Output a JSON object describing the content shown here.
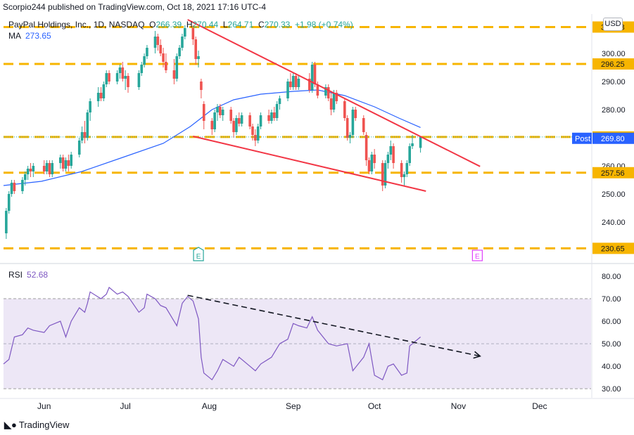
{
  "header": {
    "publisher": "Scorpio244 published on TradingView.com, Oct 18, 2021 17:16 UTC-4",
    "symbol": "PayPal Holdings, Inc., 1D, NASDAQ",
    "ohlc": {
      "open_label": "O",
      "open": "266.39",
      "high_label": "H",
      "high": "270.44",
      "low_label": "L",
      "low": "264.71",
      "close_label": "C",
      "close": "270.33",
      "change": "+1.98 (+0.74%)"
    },
    "ma_label": "MA",
    "ma_value": "273.65",
    "rsi_label": "RSI",
    "rsi_value": "52.68",
    "currency_button": "USD"
  },
  "footer": {
    "brand": "TradingView"
  },
  "colors": {
    "up": "#26a69a",
    "down": "#ef5350",
    "ma": "#2962ff",
    "rsi": "#7e57c2",
    "level": "#f7b500",
    "trend": "#f23645",
    "rsi_band": "#ede7f6"
  },
  "chart_data": {
    "type": "candlestick",
    "price_axis": {
      "ylim": [
        226,
        314
      ],
      "ticks": [
        "240.00",
        "250.00",
        "260.00",
        "270.00",
        "280.00",
        "290.00",
        "300.00"
      ]
    },
    "rsi_axis": {
      "ylim": [
        26,
        85
      ],
      "ticks": [
        "30.00",
        "40.00",
        "50.00",
        "60.00",
        "70.00",
        "80.00"
      ],
      "band": [
        30,
        70
      ],
      "midline": 50
    },
    "x_axis": {
      "range": [
        "2021-05-17",
        "2021-12-20"
      ],
      "labels": [
        {
          "date": "2021-06-01",
          "text": "Jun"
        },
        {
          "date": "2021-07-01",
          "text": "Jul"
        },
        {
          "date": "2021-08-01",
          "text": "Aug"
        },
        {
          "date": "2021-09-01",
          "text": "Sep"
        },
        {
          "date": "2021-10-01",
          "text": "Oct"
        },
        {
          "date": "2021-11-01",
          "text": "Nov"
        },
        {
          "date": "2021-12-01",
          "text": "Dec"
        }
      ]
    },
    "levels": [
      {
        "value": 309.38,
        "label": "309.38"
      },
      {
        "value": 296.25,
        "label": "296.25"
      },
      {
        "value": 270.28,
        "label": "270.28"
      },
      {
        "value": 257.56,
        "label": "257.56"
      },
      {
        "value": 230.65,
        "label": "230.65"
      }
    ],
    "price_tags": [
      {
        "value": 269.8,
        "text": "Post",
        "label": "269.80"
      }
    ],
    "earnings_markers": [
      {
        "date": "2021-07-28",
        "text": "E"
      },
      {
        "date": "2021-11-08",
        "text": "E"
      }
    ],
    "trendlines_price": [
      {
        "from": [
          "2021-07-24",
          312.0
        ],
        "to": [
          "2021-11-09",
          259.8
        ]
      },
      {
        "from": [
          "2021-07-26",
          270.5
        ],
        "to": [
          "2021-10-20",
          251.0
        ]
      }
    ],
    "trendline_rsi": {
      "from": [
        "2021-07-24",
        71.5
      ],
      "to": [
        "2021-11-09",
        44.5
      ]
    },
    "candles": [
      {
        "d": "2021-05-18",
        "o": 236,
        "h": 245,
        "l": 234,
        "c": 244
      },
      {
        "d": "2021-05-19",
        "o": 244,
        "h": 251,
        "l": 243,
        "c": 250
      },
      {
        "d": "2021-05-20",
        "o": 250,
        "h": 255,
        "l": 249,
        "c": 254
      },
      {
        "d": "2021-05-21",
        "o": 254,
        "h": 255,
        "l": 250,
        "c": 251
      },
      {
        "d": "2021-05-24",
        "o": 251,
        "h": 256,
        "l": 250,
        "c": 255
      },
      {
        "d": "2021-05-25",
        "o": 255,
        "h": 258,
        "l": 253,
        "c": 257
      },
      {
        "d": "2021-05-26",
        "o": 257,
        "h": 260,
        "l": 255,
        "c": 259
      },
      {
        "d": "2021-05-27",
        "o": 259,
        "h": 261,
        "l": 256,
        "c": 258
      },
      {
        "d": "2021-05-28",
        "o": 258,
        "h": 261,
        "l": 256,
        "c": 260
      },
      {
        "d": "2021-06-01",
        "o": 260,
        "h": 262,
        "l": 257,
        "c": 258
      },
      {
        "d": "2021-06-02",
        "o": 258,
        "h": 262,
        "l": 257,
        "c": 261
      },
      {
        "d": "2021-06-03",
        "o": 261,
        "h": 262,
        "l": 256,
        "c": 257
      },
      {
        "d": "2021-06-04",
        "o": 257,
        "h": 262,
        "l": 256,
        "c": 261
      },
      {
        "d": "2021-06-07",
        "o": 261,
        "h": 264,
        "l": 259,
        "c": 263
      },
      {
        "d": "2021-06-08",
        "o": 263,
        "h": 264,
        "l": 258,
        "c": 259
      },
      {
        "d": "2021-06-09",
        "o": 259,
        "h": 263,
        "l": 258,
        "c": 262
      },
      {
        "d": "2021-06-10",
        "o": 262,
        "h": 264,
        "l": 258,
        "c": 260
      },
      {
        "d": "2021-06-11",
        "o": 260,
        "h": 265,
        "l": 259,
        "c": 264
      },
      {
        "d": "2021-06-14",
        "o": 264,
        "h": 270,
        "l": 263,
        "c": 269
      },
      {
        "d": "2021-06-15",
        "o": 269,
        "h": 274,
        "l": 268,
        "c": 272
      },
      {
        "d": "2021-06-16",
        "o": 272,
        "h": 276,
        "l": 268,
        "c": 270
      },
      {
        "d": "2021-06-17",
        "o": 270,
        "h": 280,
        "l": 269,
        "c": 279
      },
      {
        "d": "2021-06-18",
        "o": 279,
        "h": 284,
        "l": 276,
        "c": 283
      },
      {
        "d": "2021-06-21",
        "o": 283,
        "h": 288,
        "l": 281,
        "c": 286
      },
      {
        "d": "2021-06-22",
        "o": 286,
        "h": 288,
        "l": 283,
        "c": 284
      },
      {
        "d": "2021-06-23",
        "o": 284,
        "h": 290,
        "l": 283,
        "c": 289
      },
      {
        "d": "2021-06-24",
        "o": 289,
        "h": 294,
        "l": 288,
        "c": 293
      },
      {
        "d": "2021-06-25",
        "o": 293,
        "h": 294,
        "l": 289,
        "c": 290
      },
      {
        "d": "2021-06-28",
        "o": 290,
        "h": 294,
        "l": 289,
        "c": 293
      },
      {
        "d": "2021-06-29",
        "o": 293,
        "h": 296,
        "l": 291,
        "c": 295
      },
      {
        "d": "2021-06-30",
        "o": 295,
        "h": 297,
        "l": 290,
        "c": 291
      },
      {
        "d": "2021-07-01",
        "o": 291,
        "h": 294,
        "l": 287,
        "c": 292
      },
      {
        "d": "2021-07-02",
        "o": 292,
        "h": 293,
        "l": 286,
        "c": 288
      },
      {
        "d": "2021-07-06",
        "o": 288,
        "h": 294,
        "l": 287,
        "c": 293
      },
      {
        "d": "2021-07-07",
        "o": 293,
        "h": 297,
        "l": 292,
        "c": 296
      },
      {
        "d": "2021-07-08",
        "o": 296,
        "h": 300,
        "l": 295,
        "c": 299
      },
      {
        "d": "2021-07-09",
        "o": 299,
        "h": 303,
        "l": 298,
        "c": 302
      },
      {
        "d": "2021-07-12",
        "o": 302,
        "h": 308,
        "l": 300,
        "c": 306
      },
      {
        "d": "2021-07-13",
        "o": 306,
        "h": 307,
        "l": 301,
        "c": 303
      },
      {
        "d": "2021-07-14",
        "o": 303,
        "h": 305,
        "l": 299,
        "c": 300
      },
      {
        "d": "2021-07-15",
        "o": 300,
        "h": 302,
        "l": 295,
        "c": 297
      },
      {
        "d": "2021-07-16",
        "o": 297,
        "h": 300,
        "l": 293,
        "c": 294
      },
      {
        "d": "2021-07-19",
        "o": 294,
        "h": 298,
        "l": 289,
        "c": 291
      },
      {
        "d": "2021-07-20",
        "o": 291,
        "h": 300,
        "l": 290,
        "c": 299
      },
      {
        "d": "2021-07-21",
        "o": 299,
        "h": 303,
        "l": 298,
        "c": 302
      },
      {
        "d": "2021-07-22",
        "o": 302,
        "h": 307,
        "l": 301,
        "c": 306
      },
      {
        "d": "2021-07-23",
        "o": 306,
        "h": 310,
        "l": 305,
        "c": 309
      },
      {
        "d": "2021-07-26",
        "o": 309,
        "h": 310,
        "l": 303,
        "c": 305
      },
      {
        "d": "2021-07-27",
        "o": 305,
        "h": 306,
        "l": 296,
        "c": 298
      },
      {
        "d": "2021-07-28",
        "o": 298,
        "h": 301,
        "l": 295,
        "c": 299
      },
      {
        "d": "2021-07-29",
        "o": 290,
        "h": 291,
        "l": 284,
        "c": 287
      },
      {
        "d": "2021-07-30",
        "o": 282,
        "h": 283,
        "l": 273,
        "c": 276
      },
      {
        "d": "2021-08-02",
        "o": 276,
        "h": 277,
        "l": 271,
        "c": 273
      },
      {
        "d": "2021-08-03",
        "o": 273,
        "h": 280,
        "l": 272,
        "c": 279
      },
      {
        "d": "2021-08-04",
        "o": 279,
        "h": 282,
        "l": 276,
        "c": 281
      },
      {
        "d": "2021-08-05",
        "o": 281,
        "h": 282,
        "l": 277,
        "c": 278
      },
      {
        "d": "2021-08-06",
        "o": 278,
        "h": 281,
        "l": 276,
        "c": 280
      },
      {
        "d": "2021-08-09",
        "o": 280,
        "h": 281,
        "l": 275,
        "c": 276
      },
      {
        "d": "2021-08-10",
        "o": 276,
        "h": 277,
        "l": 270,
        "c": 272
      },
      {
        "d": "2021-08-11",
        "o": 272,
        "h": 278,
        "l": 271,
        "c": 277
      },
      {
        "d": "2021-08-12",
        "o": 277,
        "h": 279,
        "l": 274,
        "c": 275
      },
      {
        "d": "2021-08-13",
        "o": 275,
        "h": 279,
        "l": 274,
        "c": 278
      },
      {
        "d": "2021-08-16",
        "o": 278,
        "h": 279,
        "l": 273,
        "c": 274
      },
      {
        "d": "2021-08-17",
        "o": 274,
        "h": 275,
        "l": 269,
        "c": 271
      },
      {
        "d": "2021-08-18",
        "o": 271,
        "h": 273,
        "l": 267,
        "c": 269
      },
      {
        "d": "2021-08-19",
        "o": 269,
        "h": 275,
        "l": 268,
        "c": 274
      },
      {
        "d": "2021-08-20",
        "o": 274,
        "h": 279,
        "l": 273,
        "c": 278
      },
      {
        "d": "2021-08-23",
        "o": 278,
        "h": 280,
        "l": 275,
        "c": 276
      },
      {
        "d": "2021-08-24",
        "o": 276,
        "h": 280,
        "l": 275,
        "c": 279
      },
      {
        "d": "2021-08-25",
        "o": 279,
        "h": 281,
        "l": 276,
        "c": 277
      },
      {
        "d": "2021-08-26",
        "o": 277,
        "h": 283,
        "l": 276,
        "c": 282
      },
      {
        "d": "2021-08-27",
        "o": 282,
        "h": 285,
        "l": 280,
        "c": 284
      },
      {
        "d": "2021-08-30",
        "o": 284,
        "h": 291,
        "l": 283,
        "c": 290
      },
      {
        "d": "2021-08-31",
        "o": 290,
        "h": 293,
        "l": 287,
        "c": 288
      },
      {
        "d": "2021-09-01",
        "o": 288,
        "h": 293,
        "l": 287,
        "c": 292
      },
      {
        "d": "2021-09-02",
        "o": 292,
        "h": 293,
        "l": 287,
        "c": 288
      },
      {
        "d": "2021-09-03",
        "o": 288,
        "h": 292,
        "l": 287,
        "c": 291
      },
      {
        "d": "2021-09-07",
        "o": 291,
        "h": 293,
        "l": 286,
        "c": 287
      },
      {
        "d": "2021-09-08",
        "o": 287,
        "h": 297,
        "l": 286,
        "c": 296
      },
      {
        "d": "2021-09-09",
        "o": 296,
        "h": 297,
        "l": 288,
        "c": 289
      },
      {
        "d": "2021-09-10",
        "o": 289,
        "h": 290,
        "l": 284,
        "c": 285
      },
      {
        "d": "2021-09-13",
        "o": 285,
        "h": 289,
        "l": 284,
        "c": 288
      },
      {
        "d": "2021-09-14",
        "o": 288,
        "h": 289,
        "l": 283,
        "c": 284
      },
      {
        "d": "2021-09-15",
        "o": 284,
        "h": 286,
        "l": 278,
        "c": 280
      },
      {
        "d": "2021-09-16",
        "o": 280,
        "h": 287,
        "l": 279,
        "c": 286
      },
      {
        "d": "2021-09-17",
        "o": 286,
        "h": 287,
        "l": 282,
        "c": 283
      },
      {
        "d": "2021-09-20",
        "o": 283,
        "h": 284,
        "l": 276,
        "c": 277
      },
      {
        "d": "2021-09-21",
        "o": 277,
        "h": 278,
        "l": 269,
        "c": 270
      },
      {
        "d": "2021-09-22",
        "o": 270,
        "h": 272,
        "l": 268,
        "c": 271
      },
      {
        "d": "2021-09-23",
        "o": 271,
        "h": 281,
        "l": 270,
        "c": 280
      },
      {
        "d": "2021-09-24",
        "o": 280,
        "h": 281,
        "l": 276,
        "c": 277
      },
      {
        "d": "2021-09-27",
        "o": 277,
        "h": 278,
        "l": 271,
        "c": 272
      },
      {
        "d": "2021-09-28",
        "o": 271,
        "h": 272,
        "l": 260,
        "c": 262
      },
      {
        "d": "2021-09-29",
        "o": 262,
        "h": 263,
        "l": 257,
        "c": 258
      },
      {
        "d": "2021-09-30",
        "o": 258,
        "h": 265,
        "l": 257,
        "c": 264
      },
      {
        "d": "2021-10-01",
        "o": 264,
        "h": 266,
        "l": 259,
        "c": 261
      },
      {
        "d": "2021-10-04",
        "o": 261,
        "h": 262,
        "l": 251,
        "c": 253
      },
      {
        "d": "2021-10-05",
        "o": 253,
        "h": 262,
        "l": 252,
        "c": 261
      },
      {
        "d": "2021-10-06",
        "o": 261,
        "h": 265,
        "l": 259,
        "c": 264
      },
      {
        "d": "2021-10-07",
        "o": 264,
        "h": 269,
        "l": 262,
        "c": 267
      },
      {
        "d": "2021-10-08",
        "o": 267,
        "h": 268,
        "l": 259,
        "c": 261
      },
      {
        "d": "2021-10-11",
        "o": 261,
        "h": 262,
        "l": 254,
        "c": 256
      },
      {
        "d": "2021-10-12",
        "o": 256,
        "h": 258,
        "l": 253,
        "c": 257
      },
      {
        "d": "2021-10-13",
        "o": 257,
        "h": 262,
        "l": 256,
        "c": 261
      },
      {
        "d": "2021-10-14",
        "o": 261,
        "h": 268,
        "l": 260,
        "c": 267
      },
      {
        "d": "2021-10-15",
        "o": 267,
        "h": 271,
        "l": 266,
        "c": 268
      },
      {
        "d": "2021-10-18",
        "o": 266.39,
        "h": 270.44,
        "l": 264.71,
        "c": 270.33
      }
    ],
    "ma_series": [
      [
        "2021-05-17",
        253
      ],
      [
        "2021-05-31",
        254.5
      ],
      [
        "2021-06-15",
        258
      ],
      [
        "2021-06-30",
        263
      ],
      [
        "2021-07-15",
        268
      ],
      [
        "2021-07-25",
        274
      ],
      [
        "2021-08-02",
        280
      ],
      [
        "2021-08-10",
        283.5
      ],
      [
        "2021-08-20",
        285.5
      ],
      [
        "2021-09-01",
        286.5
      ],
      [
        "2021-09-10",
        287
      ],
      [
        "2021-09-20",
        285
      ],
      [
        "2021-10-01",
        281
      ],
      [
        "2021-10-10",
        277
      ],
      [
        "2021-10-18",
        273.65
      ]
    ],
    "rsi_series": [
      [
        "2021-05-17",
        41
      ],
      [
        "2021-05-19",
        43
      ],
      [
        "2021-05-21",
        53
      ],
      [
        "2021-05-24",
        54
      ],
      [
        "2021-05-26",
        57
      ],
      [
        "2021-05-28",
        56
      ],
      [
        "2021-06-01",
        55
      ],
      [
        "2021-06-03",
        58
      ],
      [
        "2021-06-07",
        60
      ],
      [
        "2021-06-09",
        53
      ],
      [
        "2021-06-11",
        60
      ],
      [
        "2021-06-14",
        66
      ],
      [
        "2021-06-16",
        64
      ],
      [
        "2021-06-17",
        68
      ],
      [
        "2021-06-18",
        73
      ],
      [
        "2021-06-22",
        70
      ],
      [
        "2021-06-24",
        72
      ],
      [
        "2021-06-25",
        75
      ],
      [
        "2021-06-28",
        72
      ],
      [
        "2021-06-30",
        73
      ],
      [
        "2021-07-02",
        71
      ],
      [
        "2021-07-06",
        64
      ],
      [
        "2021-07-08",
        66
      ],
      [
        "2021-07-09",
        72
      ],
      [
        "2021-07-12",
        70
      ],
      [
        "2021-07-14",
        67
      ],
      [
        "2021-07-16",
        66
      ],
      [
        "2021-07-20",
        58
      ],
      [
        "2021-07-22",
        68
      ],
      [
        "2021-07-24",
        71
      ],
      [
        "2021-07-26",
        69
      ],
      [
        "2021-07-28",
        61
      ],
      [
        "2021-07-29",
        44
      ],
      [
        "2021-07-30",
        37
      ],
      [
        "2021-08-02",
        34
      ],
      [
        "2021-08-04",
        38
      ],
      [
        "2021-08-06",
        43
      ],
      [
        "2021-08-10",
        40
      ],
      [
        "2021-08-12",
        44
      ],
      [
        "2021-08-16",
        40
      ],
      [
        "2021-08-18",
        38
      ],
      [
        "2021-08-20",
        41
      ],
      [
        "2021-08-24",
        44
      ],
      [
        "2021-08-27",
        50
      ],
      [
        "2021-08-30",
        52
      ],
      [
        "2021-09-01",
        59
      ],
      [
        "2021-09-03",
        58
      ],
      [
        "2021-09-06",
        57
      ],
      [
        "2021-09-08",
        62
      ],
      [
        "2021-09-10",
        56
      ],
      [
        "2021-09-14",
        50
      ],
      [
        "2021-09-17",
        49
      ],
      [
        "2021-09-21",
        50
      ],
      [
        "2021-09-23",
        38
      ],
      [
        "2021-09-27",
        44
      ],
      [
        "2021-09-29",
        50
      ],
      [
        "2021-10-01",
        36
      ],
      [
        "2021-10-04",
        34
      ],
      [
        "2021-10-06",
        40
      ],
      [
        "2021-10-08",
        41
      ],
      [
        "2021-10-11",
        36
      ],
      [
        "2021-10-13",
        37
      ],
      [
        "2021-10-14",
        49
      ],
      [
        "2021-10-16",
        51
      ],
      [
        "2021-10-18",
        53
      ]
    ]
  }
}
